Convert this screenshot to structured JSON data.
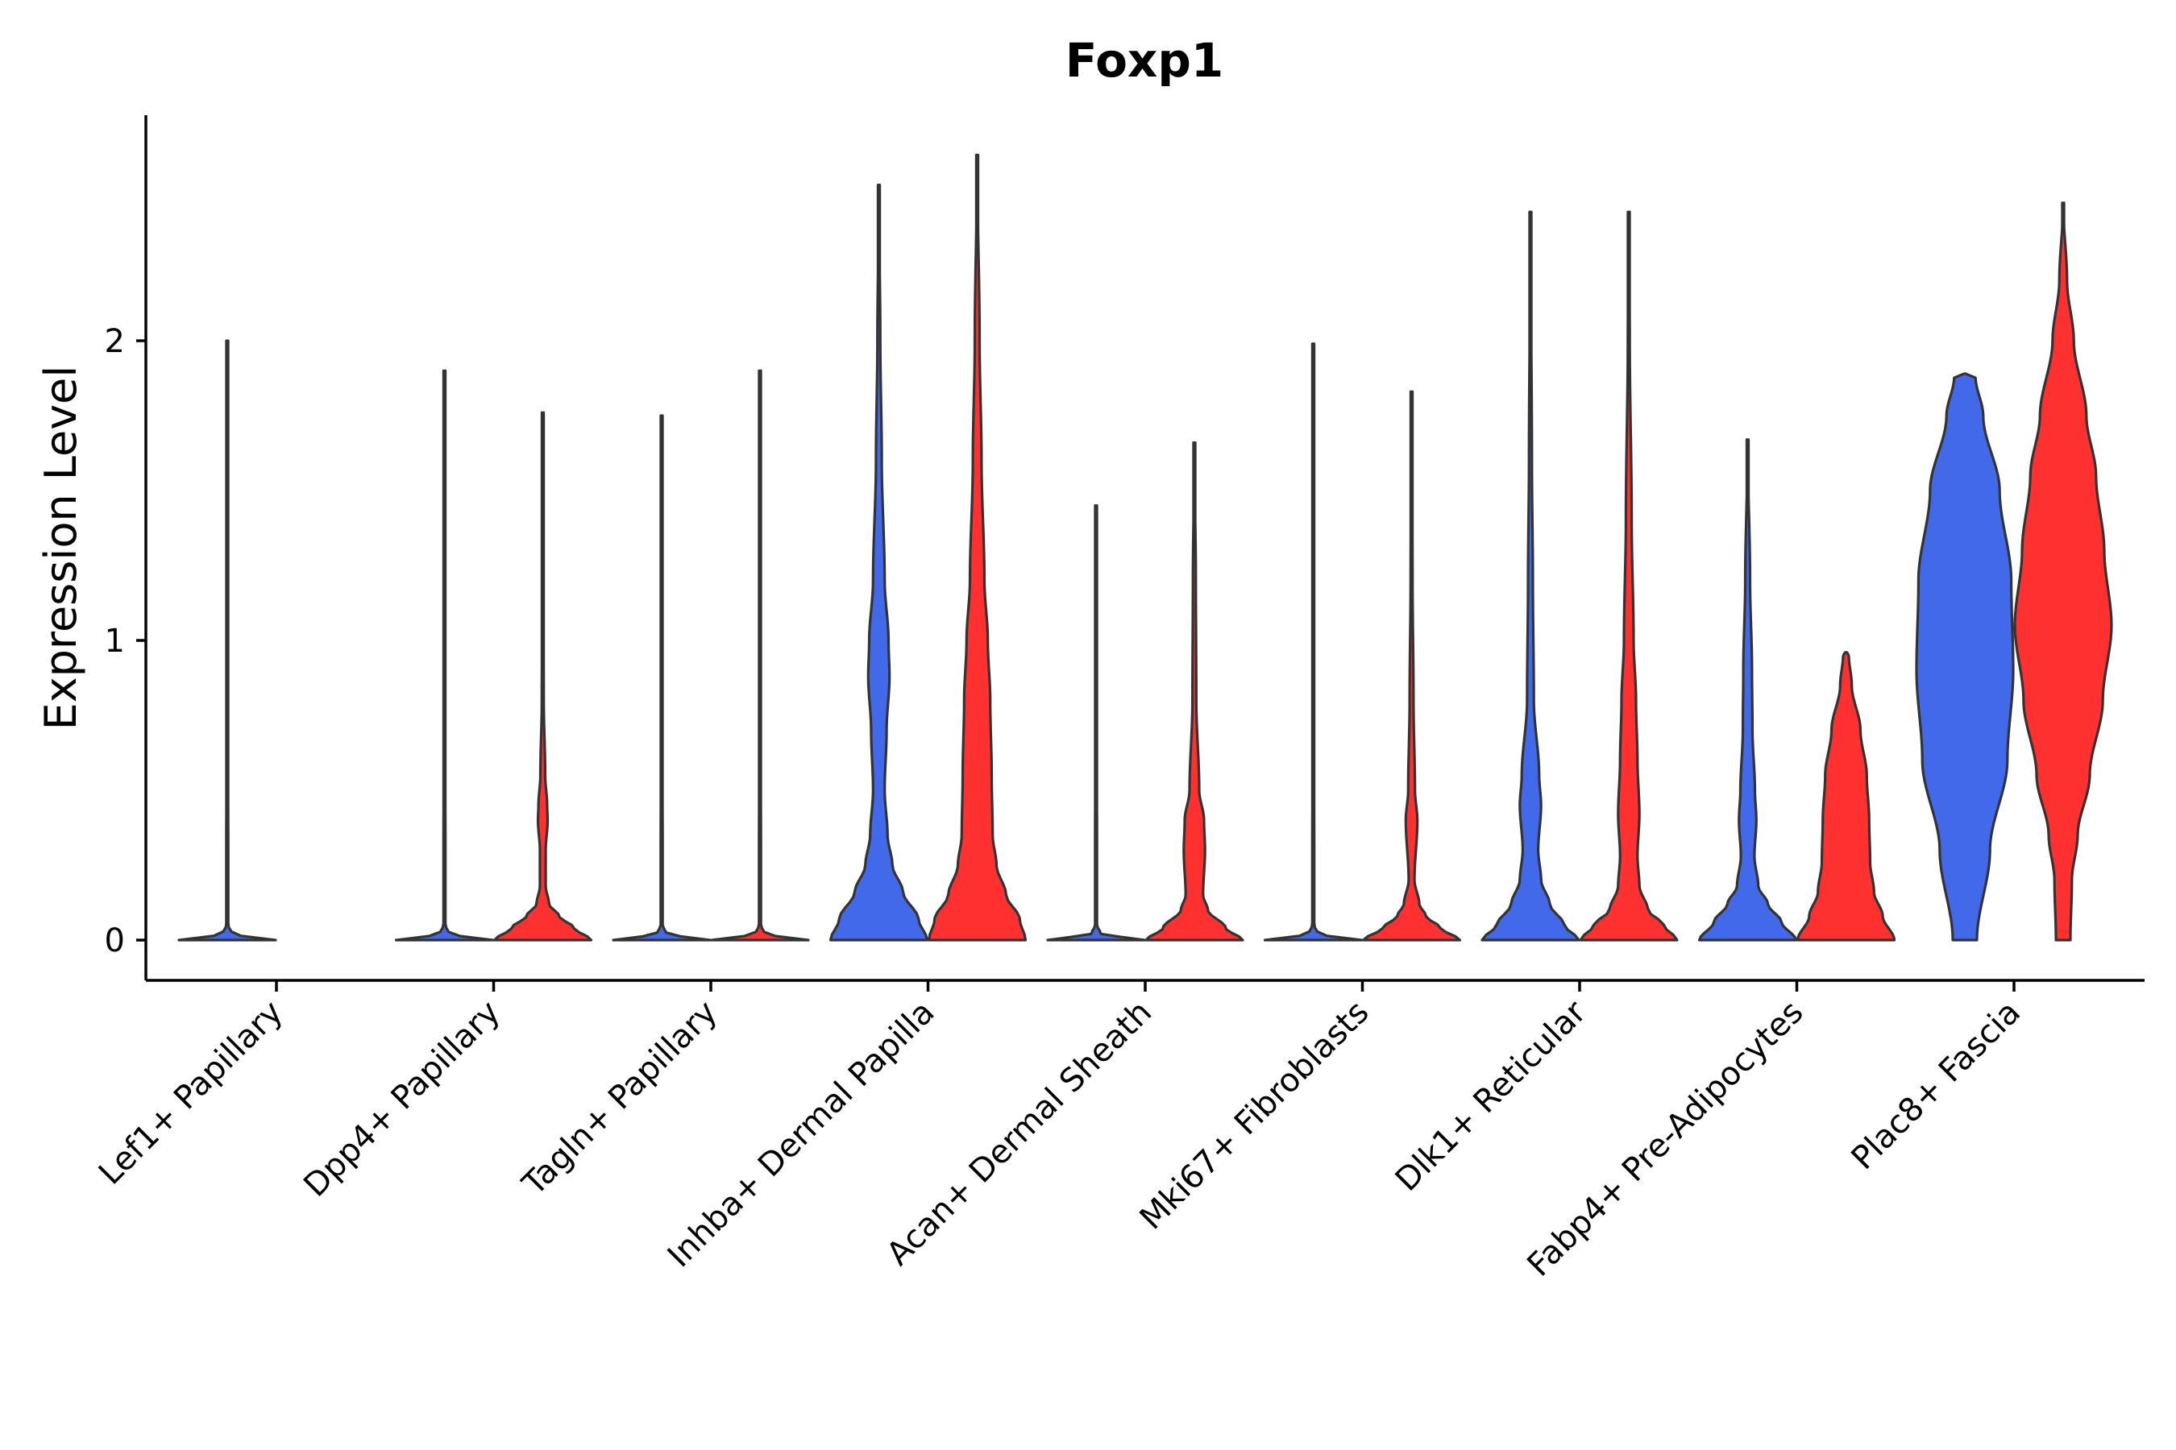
{
  "chart_data": {
    "type": "violin",
    "title": "Foxp1",
    "xlabel": "",
    "ylabel": "Expression Level",
    "ylim": [
      -0.13,
      2.75
    ],
    "yticks": [
      0,
      1,
      2
    ],
    "ytick_labels": [
      "0",
      "1",
      "2"
    ],
    "grid": false,
    "legend": "none",
    "categories": [
      "Lef1+ Papillary",
      "Dpp4+ Papillary",
      "Tagln+ Papillary",
      "Inhba+ Dermal Papilla",
      "Acan+ Dermal Sheath",
      "Mki67+ Fibroblasts",
      "Dlk1+ Reticular",
      "Fabp4+ Pre-Adipocytes",
      "Plac8+ Fascia"
    ],
    "series": [
      {
        "name": "group 1",
        "color": "#4169E9",
        "max_values": [
          2.0,
          1.9,
          1.75,
          2.52,
          1.45,
          1.99,
          2.43,
          1.67,
          1.89
        ],
        "profiles": [
          [
            [
              0,
              1.0
            ],
            [
              0.02,
              0.1
            ],
            [
              0.05,
              0.02
            ],
            [
              0.3,
              0.02
            ],
            [
              1.0,
              0
            ]
          ],
          [
            [
              0,
              1.0
            ],
            [
              0.02,
              0.1
            ],
            [
              0.05,
              0.02
            ],
            [
              0.3,
              0.02
            ],
            [
              1.0,
              0
            ]
          ],
          [
            [
              0,
              1.0
            ],
            [
              0.02,
              0.1
            ],
            [
              0.05,
              0.02
            ],
            [
              0.3,
              0.02
            ],
            [
              1.0,
              0
            ]
          ],
          [
            [
              0,
              1.0
            ],
            [
              0.07,
              0.82
            ],
            [
              0.16,
              0.5
            ],
            [
              0.25,
              0.28
            ],
            [
              0.35,
              0.18
            ],
            [
              0.5,
              0.12
            ],
            [
              0.7,
              0.16
            ],
            [
              0.88,
              0.22
            ],
            [
              1.0,
              0.2
            ],
            [
              1.2,
              0.12
            ],
            [
              1.6,
              0.06
            ],
            [
              2.0,
              0.03
            ],
            [
              2.52,
              0.0
            ]
          ],
          [
            [
              0,
              1.0
            ],
            [
              0.02,
              0.1
            ],
            [
              0.05,
              0.02
            ],
            [
              0.3,
              0.02
            ],
            [
              1.0,
              0
            ]
          ],
          [
            [
              0,
              1.0
            ],
            [
              0.02,
              0.1
            ],
            [
              0.05,
              0.02
            ],
            [
              0.3,
              0.02
            ],
            [
              1.0,
              0
            ]
          ],
          [
            [
              0,
              1.0
            ],
            [
              0.05,
              0.7
            ],
            [
              0.12,
              0.4
            ],
            [
              0.2,
              0.22
            ],
            [
              0.3,
              0.16
            ],
            [
              0.45,
              0.22
            ],
            [
              0.55,
              0.18
            ],
            [
              0.8,
              0.07
            ],
            [
              1.2,
              0.05
            ],
            [
              1.6,
              0.03
            ],
            [
              2.43,
              0.0
            ]
          ],
          [
            [
              0,
              1.0
            ],
            [
              0.06,
              0.7
            ],
            [
              0.12,
              0.42
            ],
            [
              0.18,
              0.22
            ],
            [
              0.28,
              0.14
            ],
            [
              0.4,
              0.18
            ],
            [
              0.5,
              0.15
            ],
            [
              0.7,
              0.1
            ],
            [
              0.9,
              0.09
            ],
            [
              1.2,
              0.05
            ],
            [
              1.67,
              0.0
            ]
          ],
          [
            [
              0,
              0.25
            ],
            [
              0.3,
              0.52
            ],
            [
              0.6,
              0.88
            ],
            [
              0.9,
              1.0
            ],
            [
              1.2,
              0.96
            ],
            [
              1.5,
              0.72
            ],
            [
              1.75,
              0.38
            ],
            [
              1.88,
              0.22
            ],
            [
              1.89,
              0.0
            ]
          ]
        ]
      },
      {
        "name": "group 2",
        "color": "#FF3030",
        "max_values": [
          null,
          1.76,
          1.9,
          2.62,
          1.66,
          1.83,
          2.43,
          0.96,
          2.46
        ],
        "profiles": [
          null,
          [
            [
              0,
              1.0
            ],
            [
              0.04,
              0.65
            ],
            [
              0.08,
              0.34
            ],
            [
              0.12,
              0.13
            ],
            [
              0.18,
              0.06
            ],
            [
              0.3,
              0.06
            ],
            [
              0.4,
              0.1
            ],
            [
              0.45,
              0.09
            ],
            [
              0.55,
              0.05
            ],
            [
              0.8,
              0.02
            ],
            [
              1.2,
              0.01
            ],
            [
              1.76,
              0.0
            ]
          ],
          [
            [
              0,
              1.0
            ],
            [
              0.02,
              0.1
            ],
            [
              0.05,
              0.02
            ],
            [
              0.3,
              0.02
            ],
            [
              1.0,
              0
            ]
          ],
          [
            [
              0,
              1.0
            ],
            [
              0.07,
              0.88
            ],
            [
              0.15,
              0.6
            ],
            [
              0.25,
              0.4
            ],
            [
              0.35,
              0.32
            ],
            [
              0.55,
              0.3
            ],
            [
              0.8,
              0.27
            ],
            [
              1.0,
              0.22
            ],
            [
              1.2,
              0.15
            ],
            [
              1.6,
              0.09
            ],
            [
              2.0,
              0.05
            ],
            [
              2.62,
              0.0
            ]
          ],
          [
            [
              0,
              1.0
            ],
            [
              0.04,
              0.65
            ],
            [
              0.1,
              0.28
            ],
            [
              0.15,
              0.18
            ],
            [
              0.3,
              0.22
            ],
            [
              0.4,
              0.2
            ],
            [
              0.5,
              0.1
            ],
            [
              0.8,
              0.04
            ],
            [
              1.2,
              0.03
            ],
            [
              1.66,
              0.0
            ]
          ],
          [
            [
              0,
              1.0
            ],
            [
              0.04,
              0.6
            ],
            [
              0.08,
              0.3
            ],
            [
              0.12,
              0.16
            ],
            [
              0.2,
              0.06
            ],
            [
              0.4,
              0.12
            ],
            [
              0.5,
              0.07
            ],
            [
              0.8,
              0.04
            ],
            [
              1.2,
              0.02
            ],
            [
              1.83,
              0.0
            ]
          ],
          [
            [
              0,
              1.0
            ],
            [
              0.05,
              0.72
            ],
            [
              0.1,
              0.4
            ],
            [
              0.18,
              0.22
            ],
            [
              0.28,
              0.18
            ],
            [
              0.42,
              0.22
            ],
            [
              0.6,
              0.18
            ],
            [
              0.8,
              0.15
            ],
            [
              1.0,
              0.1
            ],
            [
              1.4,
              0.06
            ],
            [
              2.0,
              0.02
            ],
            [
              2.43,
              0.0
            ]
          ],
          [
            [
              0,
              1.0
            ],
            [
              0.08,
              0.76
            ],
            [
              0.16,
              0.58
            ],
            [
              0.26,
              0.5
            ],
            [
              0.4,
              0.48
            ],
            [
              0.55,
              0.43
            ],
            [
              0.7,
              0.3
            ],
            [
              0.85,
              0.12
            ],
            [
              0.95,
              0.06
            ],
            [
              0.96,
              0.0
            ]
          ],
          [
            [
              0,
              0.15
            ],
            [
              0.2,
              0.18
            ],
            [
              0.35,
              0.3
            ],
            [
              0.55,
              0.55
            ],
            [
              0.8,
              0.82
            ],
            [
              1.05,
              1.0
            ],
            [
              1.3,
              0.85
            ],
            [
              1.55,
              0.68
            ],
            [
              1.75,
              0.48
            ],
            [
              2.0,
              0.22
            ],
            [
              2.2,
              0.08
            ],
            [
              2.46,
              0.0
            ]
          ]
        ]
      }
    ]
  }
}
